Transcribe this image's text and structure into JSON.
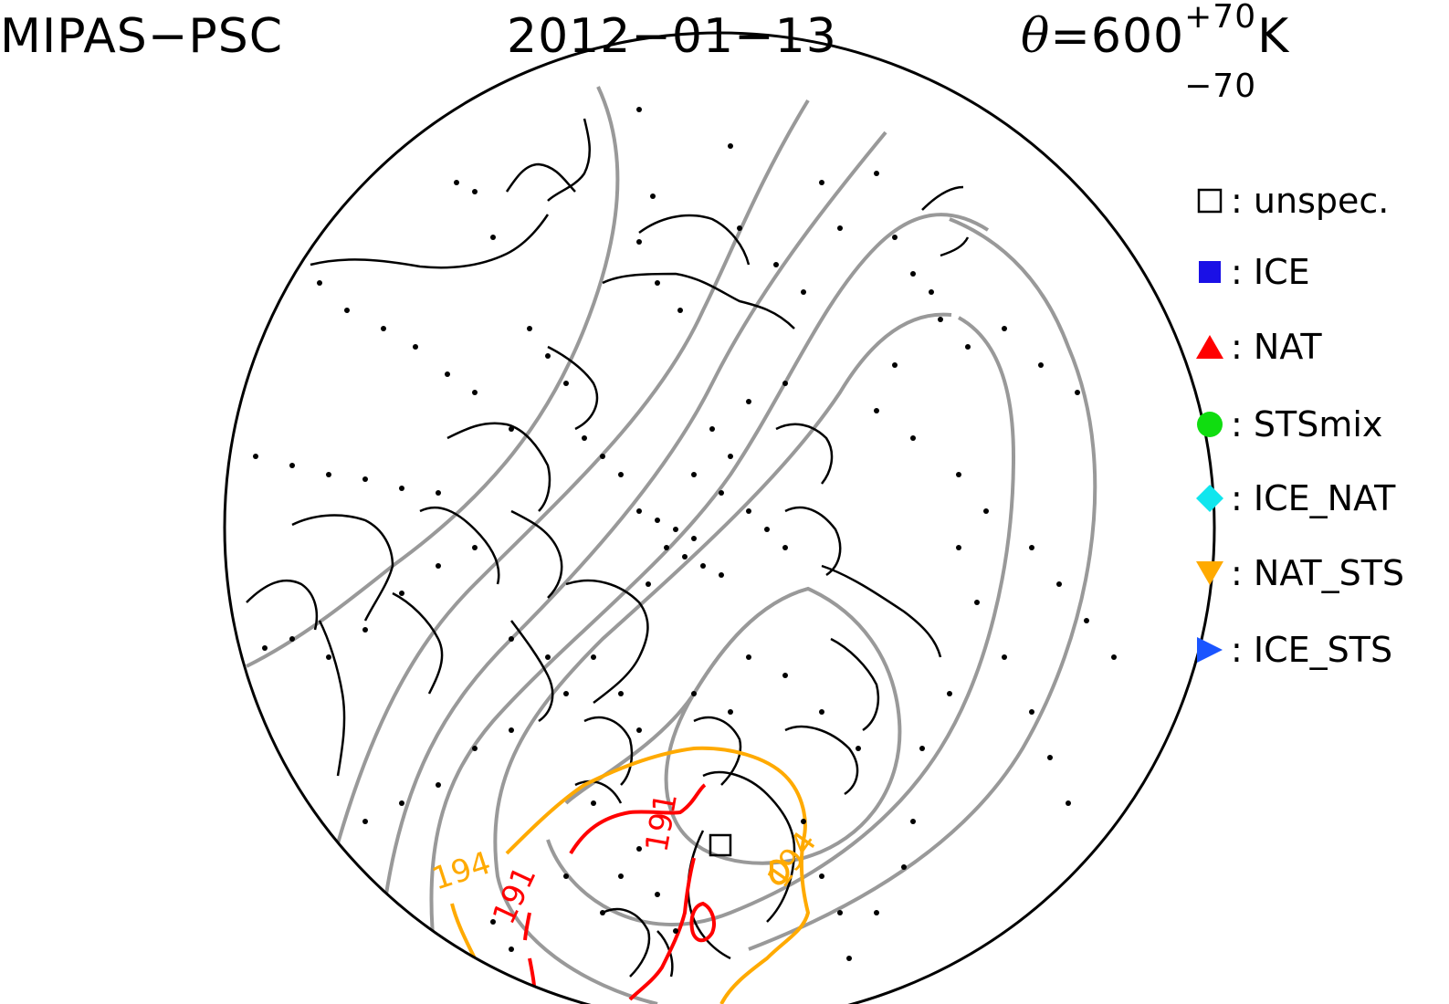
{
  "title": {
    "instrument": "MIPAS−PSC",
    "date": "2012−01−13",
    "theta_symbol": "θ",
    "theta_equals": "=600",
    "theta_plus": "+70",
    "theta_minus": "−70",
    "theta_unit": "K"
  },
  "legend": [
    {
      "symbol": "open-square",
      "color": "#000000",
      "sep": ":",
      "label": "unspec."
    },
    {
      "symbol": "square",
      "color": "#1a10e6",
      "sep": ":",
      "label": "ICE"
    },
    {
      "symbol": "triangle-up",
      "color": "#ff0000",
      "sep": ":",
      "label": "NAT"
    },
    {
      "symbol": "circle",
      "color": "#10dd10",
      "sep": ":",
      "label": "STSmix"
    },
    {
      "symbol": "diamond",
      "color": "#10e6ee",
      "sep": ":",
      "label": "ICE_NAT"
    },
    {
      "symbol": "triangle-down",
      "color": "#ffaa00",
      "sep": ":",
      "label": "NAT_STS"
    },
    {
      "symbol": "triangle-right",
      "color": "#1a55ff",
      "sep": ":",
      "label": "ICE_STS"
    }
  ],
  "contour_labels": [
    {
      "text": "194",
      "color": "#ffaa00"
    },
    {
      "text": "191",
      "color": "#ff0000"
    },
    {
      "text": "191",
      "color": "#ff0000"
    },
    {
      "text": "194",
      "color": "#ffaa00"
    }
  ],
  "colors": {
    "coast": "#000000",
    "isentrope": "#999999",
    "contour_194": "#ffaa00",
    "contour_191": "#ff0000",
    "measurement_dot": "#000000"
  }
}
